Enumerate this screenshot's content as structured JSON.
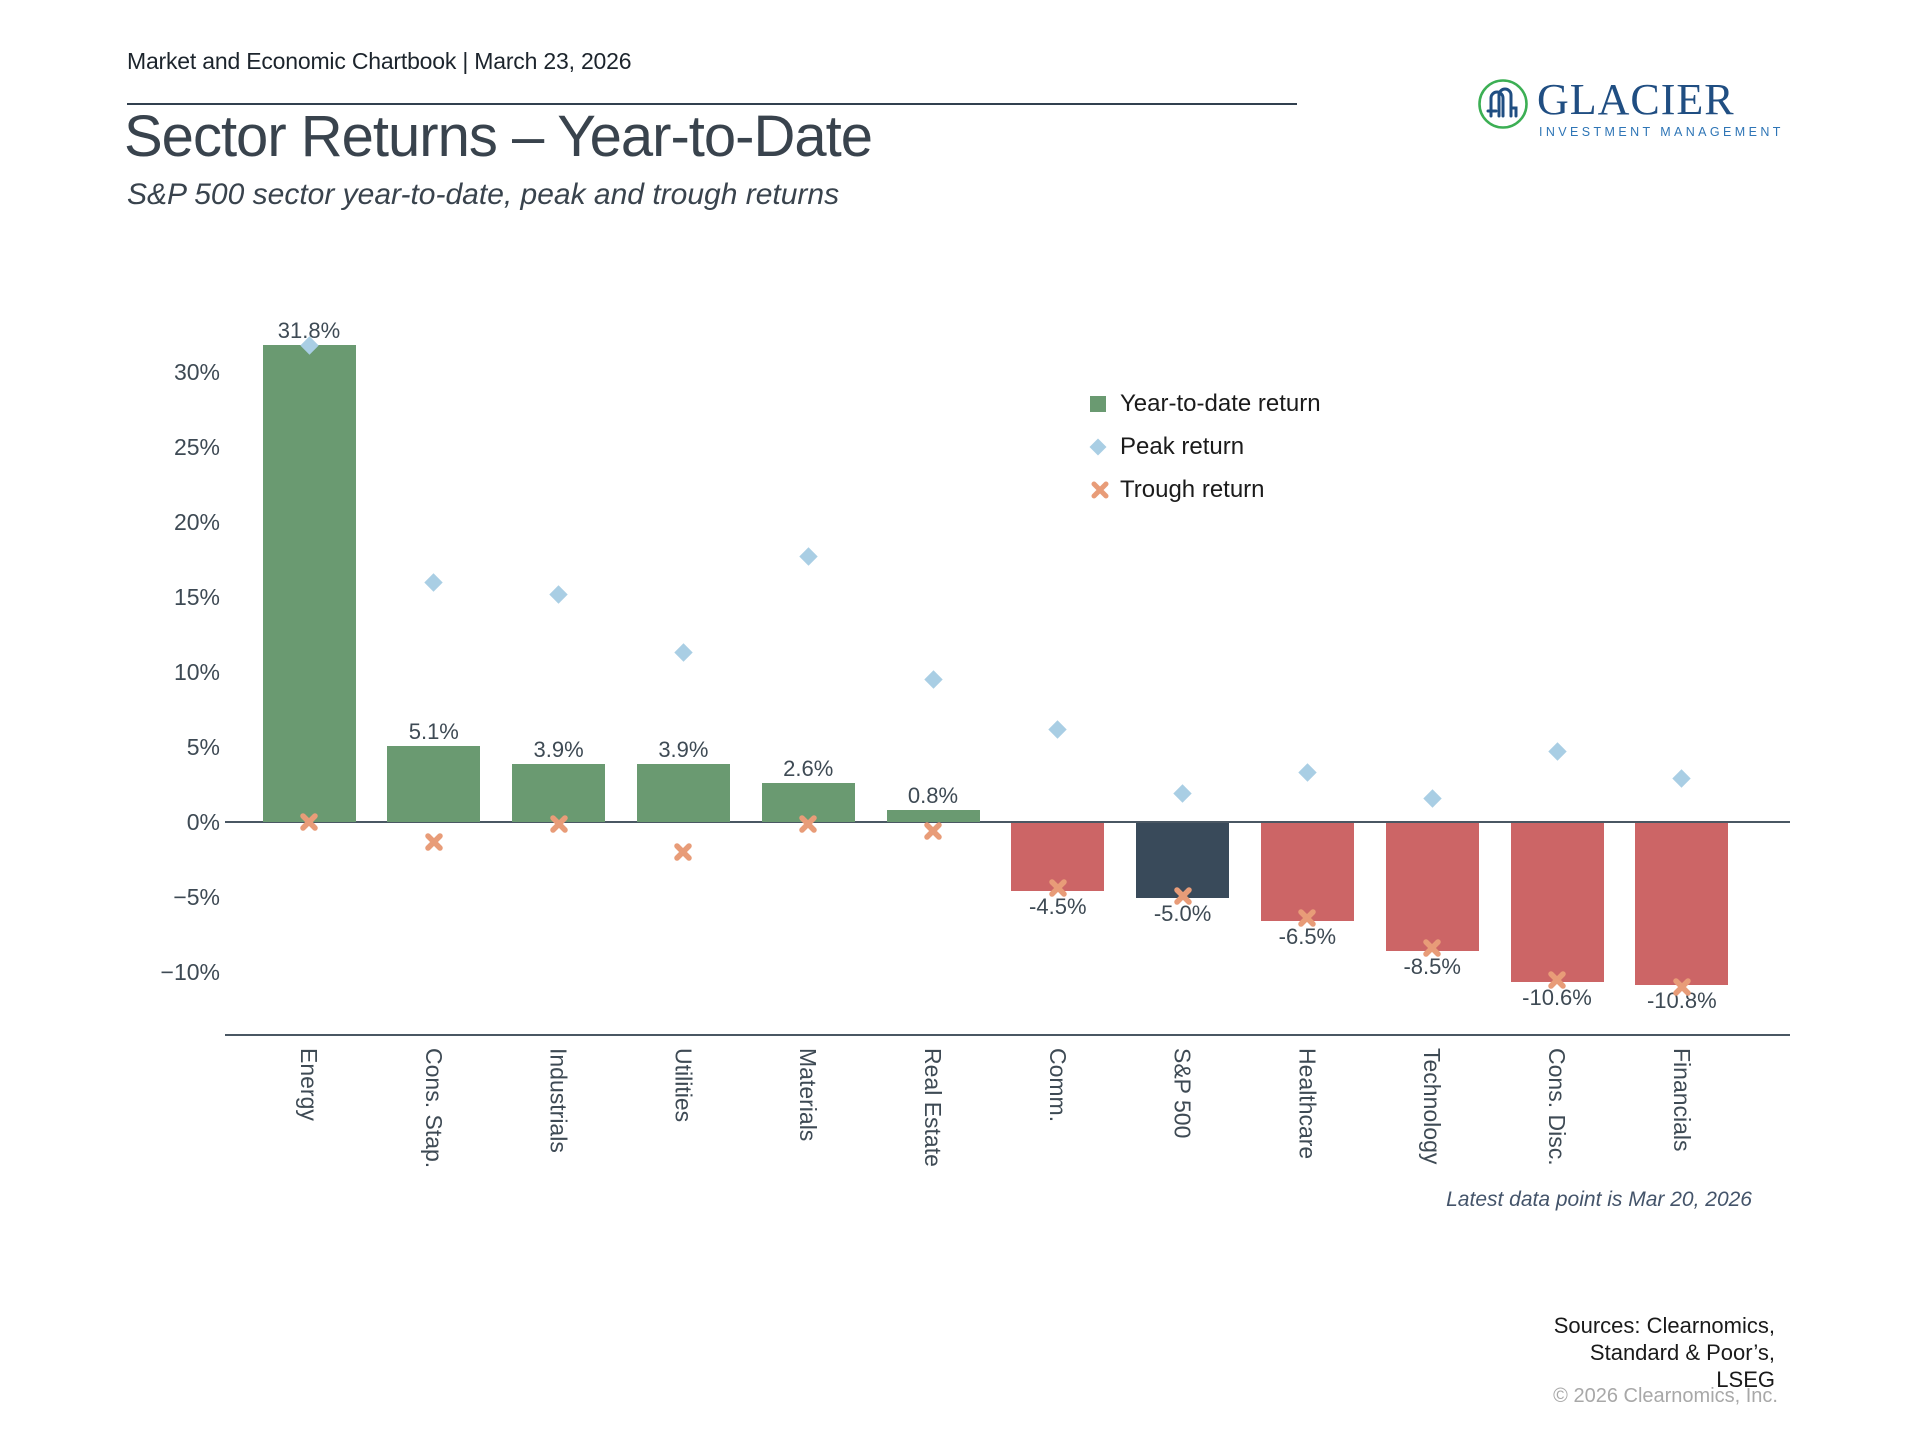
{
  "header": {
    "kicker": "Market and Economic Chartbook | March 23, 2026",
    "title": "Sector Returns – Year-to-Date",
    "subtitle": "S&P 500 sector year-to-date, peak and trough returns"
  },
  "logo": {
    "name": "GLACIER",
    "tagline": "INVESTMENT MANAGEMENT",
    "icon": "glacier-monogram-in-circle",
    "circle_color": "#3caf54",
    "monogram_color": "#204e82",
    "name_color": "#204e82",
    "tagline_color": "#2e75b6"
  },
  "legend": [
    {
      "label": "Year-to-date return",
      "marker": "square",
      "color": "#6A9A71"
    },
    {
      "label": "Peak return",
      "marker": "diamond",
      "color": "#A9CEE4"
    },
    {
      "label": "Trough return",
      "marker": "x",
      "color": "#E89C78"
    }
  ],
  "footnote": "Latest data point is Mar 20, 2026",
  "sources_lines": [
    "Sources: Clearnomics,",
    "Standard & Poor’s,",
    "LSEG"
  ],
  "copyright": "© 2026 Clearnomics, Inc.",
  "chart_data": {
    "type": "bar",
    "title": "Sector Returns – Year-to-Date",
    "subtitle": "S&P 500 sector year-to-date, peak and trough returns",
    "categories": [
      "Energy",
      "Cons. Stap.",
      "Industrials",
      "Utilities",
      "Materials",
      "Real Estate",
      "Comm.",
      "S&P 500",
      "Healthcare",
      "Technology",
      "Cons. Disc.",
      "Financials"
    ],
    "series": [
      {
        "name": "Year-to-date return",
        "type": "bar",
        "values": [
          31.8,
          5.1,
          3.9,
          3.9,
          2.6,
          0.8,
          -4.5,
          -5.0,
          -6.5,
          -8.5,
          -10.6,
          -10.8
        ]
      },
      {
        "name": "Peak return",
        "type": "scatter",
        "marker": "diamond",
        "values": [
          31.8,
          16.0,
          15.2,
          11.3,
          17.7,
          9.5,
          6.2,
          1.9,
          3.3,
          1.6,
          4.7,
          2.9
        ]
      },
      {
        "name": "Trough return",
        "type": "scatter",
        "marker": "x",
        "values": [
          0.0,
          -1.3,
          -0.1,
          -2.0,
          -0.1,
          -0.6,
          -4.4,
          -4.9,
          -6.4,
          -8.4,
          -10.5,
          -11.0
        ]
      }
    ],
    "bar_value_labels": [
      "31.8%",
      "5.1%",
      "3.9%",
      "3.9%",
      "2.6%",
      "0.8%",
      "-4.5%",
      "-5.0%",
      "-6.5%",
      "-8.5%",
      "-10.6%",
      "-10.8%"
    ],
    "bar_color_roles": [
      "positive",
      "positive",
      "positive",
      "positive",
      "positive",
      "positive",
      "negative",
      "benchmark",
      "negative",
      "negative",
      "negative",
      "negative"
    ],
    "colors": {
      "positive": "#6A9A71",
      "negative": "#CC6566",
      "benchmark": "#394A5A",
      "peak": "#A9CEE4",
      "trough": "#E89C78",
      "axis": "#4A5763",
      "text": "#3E4A54"
    },
    "yticks": [
      {
        "value": 30,
        "label": "30%"
      },
      {
        "value": 25,
        "label": "25%"
      },
      {
        "value": 20,
        "label": "20%"
      },
      {
        "value": 15,
        "label": "15%"
      },
      {
        "value": 10,
        "label": "10%"
      },
      {
        "value": 5,
        "label": "5%"
      },
      {
        "value": 0,
        "label": "0%"
      },
      {
        "value": -5,
        "label": "−5%"
      },
      {
        "value": -10,
        "label": "−10%"
      }
    ],
    "ylim": [
      -13,
      33.5
    ],
    "grid": false,
    "legend_position": "upper-right",
    "x_axis_label_rotation": "vertical"
  }
}
